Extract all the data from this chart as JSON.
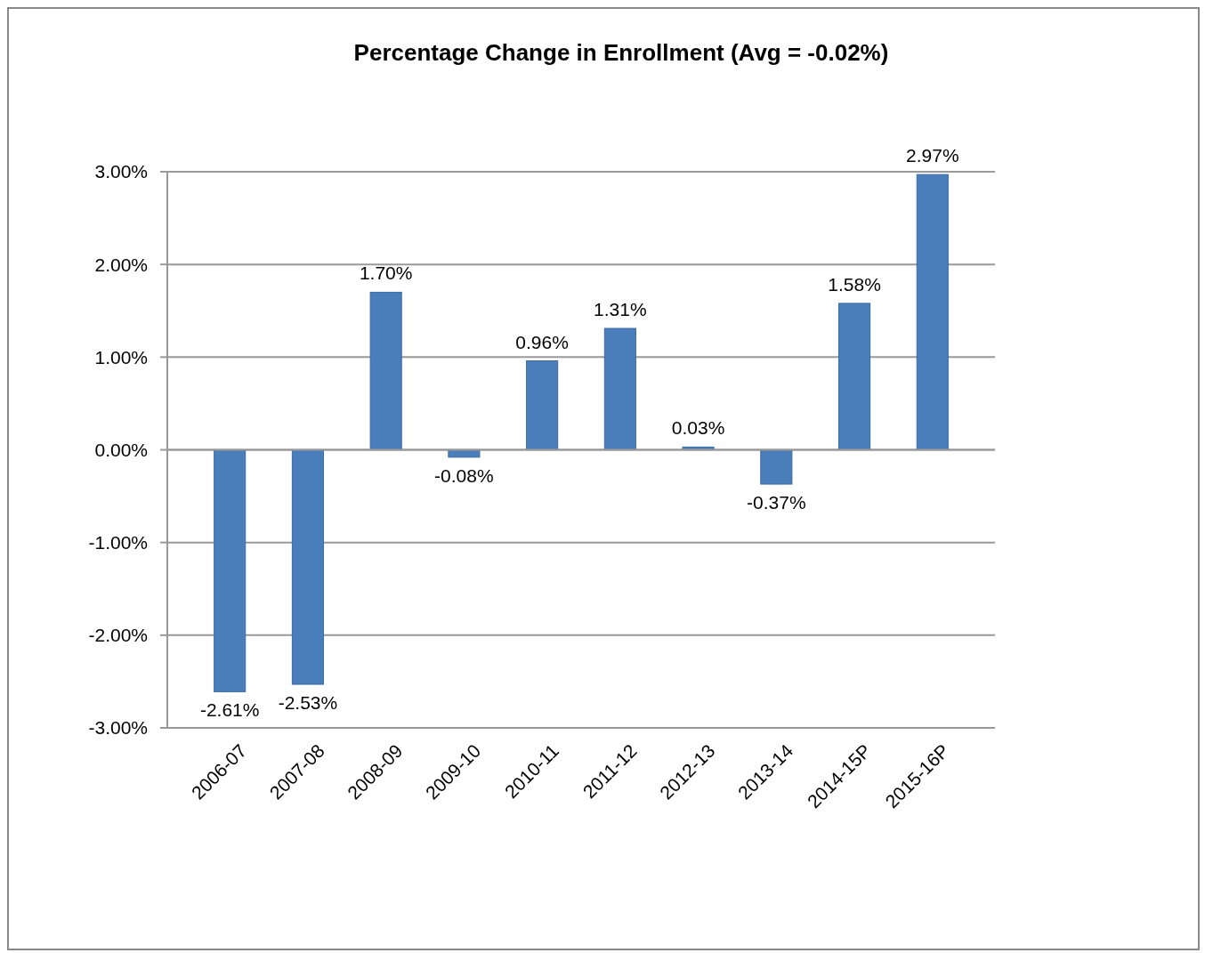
{
  "chart_data": {
    "type": "bar",
    "title": "Percentage Change in Enrollment (Avg = -0.02%)",
    "categories": [
      "2006-07",
      "2007-08",
      "2008-09",
      "2009-10",
      "2010-11",
      "2011-12",
      "2012-13",
      "2013-14",
      "2014-15P",
      "2015-16P"
    ],
    "values": [
      -2.61,
      -2.53,
      1.7,
      -0.08,
      0.96,
      1.31,
      0.03,
      -0.37,
      1.58,
      2.97
    ],
    "value_labels": [
      "-2.61%",
      "-2.53%",
      "1.70%",
      "-0.08%",
      "0.96%",
      "1.31%",
      "0.03%",
      "-0.37%",
      "1.58%",
      "2.97%"
    ],
    "color": "#4a7ebb",
    "ylim": [
      -3,
      3
    ],
    "yticks": [
      {
        "value": -3,
        "label": "-3.00%"
      },
      {
        "value": -2,
        "label": "-2.00%"
      },
      {
        "value": -1,
        "label": "-1.00%"
      },
      {
        "value": 0,
        "label": "0.00%"
      },
      {
        "value": 1,
        "label": "1.00%"
      },
      {
        "value": 2,
        "label": "2.00%"
      },
      {
        "value": 3,
        "label": "3.00%"
      }
    ],
    "grid": "y"
  }
}
